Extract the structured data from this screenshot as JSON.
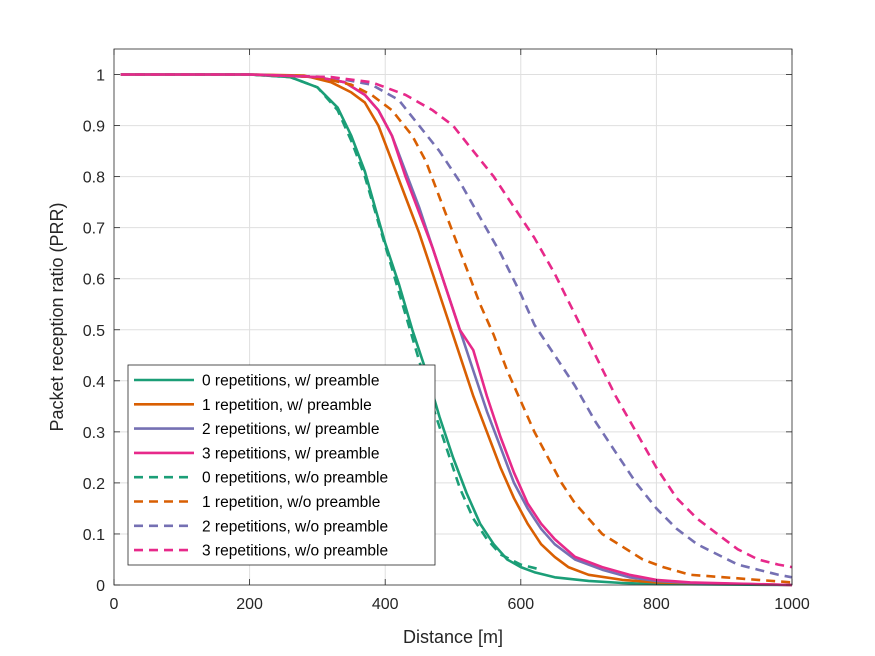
{
  "chart_data": {
    "type": "line",
    "title": "",
    "xlabel": "Distance [m]",
    "ylabel": "Packet reception ratio (PRR)",
    "xlim": [
      0,
      1000
    ],
    "ylim": [
      0,
      1.05
    ],
    "xticks": [
      0,
      200,
      400,
      600,
      800,
      1000
    ],
    "yticks": [
      0,
      0.1,
      0.2,
      0.3,
      0.4,
      0.5,
      0.6,
      0.7,
      0.8,
      0.9,
      1
    ],
    "xtick_labels": [
      "0",
      "200",
      "400",
      "600",
      "800",
      "1000"
    ],
    "ytick_labels": [
      "0",
      "0.1",
      "0.2",
      "0.3",
      "0.4",
      "0.5",
      "0.6",
      "0.7",
      "0.8",
      "0.9",
      "1"
    ],
    "grid": true,
    "legend_position": "bottom-left",
    "series": [
      {
        "name": "0 repetitions, w/ preamble",
        "color": "#1b9e77",
        "dash": "solid",
        "x": [
          10,
          200,
          260,
          300,
          330,
          350,
          370,
          385,
          400,
          420,
          440,
          460,
          480,
          500,
          520,
          540,
          560,
          580,
          600,
          620,
          650,
          700,
          750,
          800,
          1000
        ],
        "y": [
          1.0,
          1.0,
          0.995,
          0.975,
          0.935,
          0.88,
          0.81,
          0.74,
          0.67,
          0.59,
          0.5,
          0.42,
          0.33,
          0.25,
          0.18,
          0.12,
          0.08,
          0.05,
          0.035,
          0.025,
          0.015,
          0.008,
          0.004,
          0.002,
          0.0
        ]
      },
      {
        "name": "1 repetition, w/ preamble",
        "color": "#d95f02",
        "dash": "solid",
        "x": [
          10,
          200,
          280,
          320,
          350,
          370,
          390,
          410,
          430,
          450,
          470,
          490,
          510,
          530,
          550,
          570,
          590,
          610,
          630,
          650,
          670,
          700,
          750,
          800,
          1000
        ],
        "y": [
          1.0,
          1.0,
          0.998,
          0.985,
          0.965,
          0.945,
          0.9,
          0.83,
          0.76,
          0.69,
          0.61,
          0.53,
          0.45,
          0.37,
          0.3,
          0.23,
          0.17,
          0.12,
          0.08,
          0.055,
          0.035,
          0.02,
          0.01,
          0.005,
          0.0
        ]
      },
      {
        "name": "2 repetitions, w/ preamble",
        "color": "#7570b3",
        "dash": "solid",
        "x": [
          10,
          200,
          300,
          340,
          370,
          390,
          410,
          430,
          450,
          470,
          490,
          510,
          530,
          550,
          570,
          590,
          610,
          630,
          650,
          680,
          720,
          760,
          800,
          850,
          1000
        ],
        "y": [
          1.0,
          1.0,
          0.995,
          0.985,
          0.96,
          0.93,
          0.88,
          0.81,
          0.74,
          0.66,
          0.58,
          0.5,
          0.42,
          0.34,
          0.27,
          0.2,
          0.15,
          0.11,
          0.08,
          0.05,
          0.03,
          0.015,
          0.008,
          0.004,
          0.0
        ]
      },
      {
        "name": "3 repetitions, w/ preamble",
        "color": "#e7298a",
        "dash": "solid",
        "x": [
          10,
          200,
          300,
          340,
          370,
          390,
          410,
          430,
          450,
          470,
          490,
          510,
          530,
          550,
          570,
          590,
          610,
          630,
          650,
          680,
          720,
          760,
          800,
          850,
          1000
        ],
        "y": [
          1.0,
          1.0,
          0.995,
          0.985,
          0.96,
          0.93,
          0.88,
          0.8,
          0.73,
          0.66,
          0.58,
          0.5,
          0.46,
          0.37,
          0.29,
          0.22,
          0.16,
          0.12,
          0.09,
          0.055,
          0.035,
          0.02,
          0.01,
          0.005,
          0.0
        ]
      },
      {
        "name": "0 repetitions, w/o preamble",
        "color": "#1b9e77",
        "dash": "dashed",
        "x": [
          10,
          200,
          260,
          300,
          330,
          350,
          370,
          390,
          410,
          430,
          450,
          470,
          490,
          510,
          530,
          550,
          570,
          600,
          630
        ],
        "y": [
          1.0,
          1.0,
          0.995,
          0.975,
          0.93,
          0.87,
          0.8,
          0.71,
          0.62,
          0.53,
          0.44,
          0.35,
          0.27,
          0.19,
          0.13,
          0.09,
          0.06,
          0.04,
          0.03
        ]
      },
      {
        "name": "1 repetition, w/o preamble",
        "color": "#d95f02",
        "dash": "dashed",
        "x": [
          10,
          200,
          300,
          350,
          380,
          410,
          440,
          460,
          480,
          500,
          520,
          540,
          560,
          580,
          600,
          620,
          640,
          660,
          680,
          700,
          720,
          750,
          780,
          810,
          850,
          900,
          950,
          1000
        ],
        "y": [
          1.0,
          1.0,
          0.995,
          0.98,
          0.96,
          0.93,
          0.88,
          0.83,
          0.76,
          0.69,
          0.62,
          0.55,
          0.49,
          0.42,
          0.36,
          0.3,
          0.25,
          0.2,
          0.16,
          0.13,
          0.1,
          0.075,
          0.05,
          0.035,
          0.02,
          0.015,
          0.01,
          0.005
        ]
      },
      {
        "name": "2 repetitions, w/o preamble",
        "color": "#7570b3",
        "dash": "dashed",
        "x": [
          10,
          200,
          320,
          380,
          420,
          450,
          480,
          510,
          540,
          570,
          600,
          620,
          650,
          680,
          710,
          740,
          770,
          800,
          830,
          860,
          890,
          920,
          950,
          980,
          1000
        ],
        "y": [
          1.0,
          1.0,
          0.995,
          0.98,
          0.95,
          0.9,
          0.85,
          0.79,
          0.72,
          0.65,
          0.57,
          0.51,
          0.45,
          0.39,
          0.32,
          0.26,
          0.2,
          0.15,
          0.11,
          0.08,
          0.06,
          0.04,
          0.03,
          0.02,
          0.015
        ]
      },
      {
        "name": "3 repetitions, w/o preamble",
        "color": "#e7298a",
        "dash": "dashed",
        "x": [
          10,
          200,
          320,
          380,
          430,
          470,
          500,
          530,
          560,
          590,
          620,
          650,
          680,
          710,
          740,
          770,
          800,
          830,
          860,
          890,
          920,
          950,
          980,
          1000
        ],
        "y": [
          1.0,
          1.0,
          0.995,
          0.985,
          0.96,
          0.93,
          0.9,
          0.85,
          0.8,
          0.74,
          0.68,
          0.61,
          0.53,
          0.45,
          0.37,
          0.3,
          0.23,
          0.17,
          0.13,
          0.1,
          0.07,
          0.05,
          0.04,
          0.035
        ]
      }
    ]
  }
}
